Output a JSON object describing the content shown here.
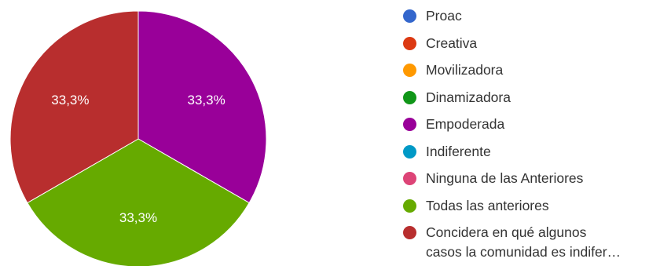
{
  "chart_data": {
    "type": "pie",
    "categories": [
      "Proac",
      "Creativa",
      "Movilizadora",
      "Dinamizadora",
      "Empoderada",
      "Indiferente",
      "Ninguna de las Anteriores",
      "Todas las anteriores",
      "Concidera en qué algunos casos la comunidad es indifer…"
    ],
    "values": [
      0,
      0,
      0,
      0,
      33.3,
      0,
      0,
      33.3,
      33.3
    ],
    "value_labels": [
      "",
      "",
      "",
      "",
      "33,3%",
      "",
      "",
      "33,3%",
      "33,3%"
    ],
    "colors": [
      "#3366cc",
      "#dc3912",
      "#ff9900",
      "#109618",
      "#990099",
      "#0099c6",
      "#dd4477",
      "#66aa00",
      "#b82e2e"
    ],
    "legend_position": "right",
    "title": ""
  },
  "legend": {
    "items": [
      {
        "label": "Proac",
        "color": "#3366cc"
      },
      {
        "label": "Creativa",
        "color": "#dc3912"
      },
      {
        "label": "Movilizadora",
        "color": "#ff9900"
      },
      {
        "label": "Dinamizadora",
        "color": "#109618"
      },
      {
        "label": "Empoderada",
        "color": "#990099"
      },
      {
        "label": "Indiferente",
        "color": "#0099c6"
      },
      {
        "label": "Ninguna de las Anteriores",
        "color": "#dd4477"
      },
      {
        "label": "Todas las anteriores",
        "color": "#66aa00"
      },
      {
        "label": "Concidera en qué algunos\ncasos la comunidad es indifer…",
        "color": "#b82e2e"
      }
    ]
  }
}
